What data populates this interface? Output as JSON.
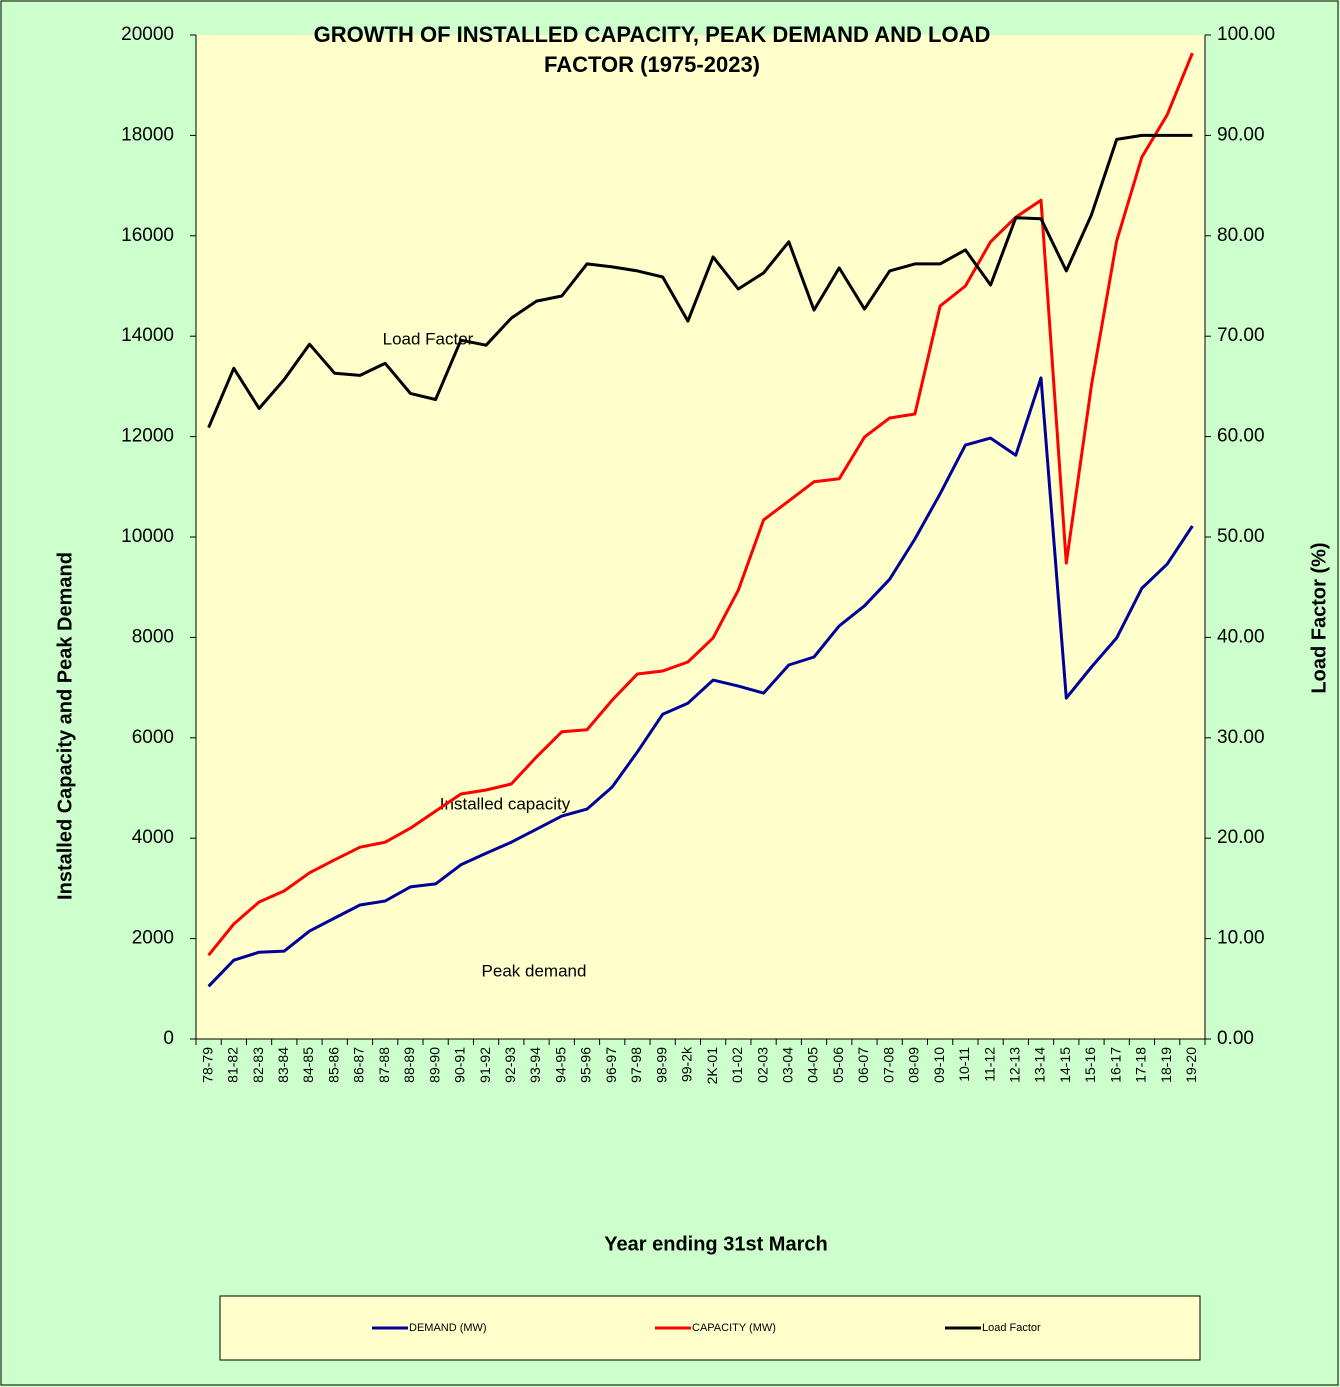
{
  "chart_data": {
    "type": "line",
    "title": "GROWTH OF INSTALLED CAPACITY, PEAK DEMAND AND LOAD FACTOR (1975-2023)",
    "x_label": "Year ending 31st March",
    "y_label": "Installed Capacity and Peak Demand",
    "y2_label": "Load Factor (%)",
    "annotations": [
      "Load Factor",
      "Installed capacity",
      "Peak demand"
    ],
    "categories": [
      "78-79",
      "81-82",
      "82-83",
      "83-84",
      "84-85",
      "85-86",
      "86-87",
      "87-88",
      "88-89",
      "89-90",
      "90-91",
      "91-92",
      "92-93",
      "93-94",
      "94-95",
      "95-96",
      "96-97",
      "97-98",
      "98-99",
      "99-2k",
      "2K-01",
      "01-02",
      "02-03",
      "03-04",
      "04-05",
      "05-06",
      "06-07",
      "07-08",
      "08-09",
      "09-10",
      "10-11",
      "11-12",
      "12-13",
      "13-14",
      "14-15",
      "15-16",
      "16-17",
      "17-18",
      "18-19",
      "19-20"
    ],
    "series": [
      {
        "name": "DEMAND (MW)",
        "color": "#000099",
        "values": [
          1050,
          1570,
          1730,
          1750,
          2150,
          2410,
          2670,
          2750,
          3030,
          3090,
          3470,
          3700,
          3920,
          4180,
          4440,
          4580,
          5020,
          5720,
          6470,
          6690,
          7150,
          7030,
          6890,
          7450,
          7610,
          8230,
          8630,
          9160,
          9960,
          10860,
          11830,
          11970,
          11630,
          13170,
          6790,
          7410,
          7990,
          8980,
          9460,
          10220
        ]
      },
      {
        "name": "CAPACITY (MW)",
        "color": "#ff0000",
        "values": [
          1670,
          2290,
          2730,
          2950,
          3310,
          3570,
          3820,
          3920,
          4200,
          4540,
          4880,
          4960,
          5080,
          5620,
          6120,
          6160,
          6750,
          7270,
          7330,
          7510,
          7990,
          8940,
          10340,
          10720,
          11100,
          11160,
          11990,
          12370,
          12450,
          14600,
          15000,
          15880,
          16370,
          16710,
          9480,
          13030,
          15900,
          17570,
          18410,
          19640
        ]
      },
      {
        "name": "Load Factor",
        "color": "#000000",
        "axis": "y2",
        "values": [
          60.9,
          66.8,
          62.8,
          65.7,
          69.2,
          66.3,
          66.1,
          67.3,
          64.3,
          63.7,
          69.6,
          69.1,
          71.8,
          73.5,
          74.0,
          77.2,
          76.9,
          76.5,
          75.9,
          71.5,
          77.9,
          74.7,
          76.3,
          79.4,
          72.6,
          76.8,
          72.7,
          76.5,
          77.2,
          77.2,
          78.6,
          75.1,
          81.8,
          81.7,
          76.5,
          82.1,
          89.6,
          90.0,
          90.0,
          90.0
        ]
      }
    ],
    "ylim": [
      0,
      20000
    ],
    "yticks": [
      0,
      2000,
      4000,
      6000,
      8000,
      10000,
      12000,
      14000,
      16000,
      18000,
      20000
    ],
    "y2lim": [
      0,
      100
    ],
    "y2ticks": [
      {
        "value": 0,
        "label": "0.00"
      },
      {
        "value": 10,
        "label": "10.00"
      },
      {
        "value": 20,
        "label": "20.00"
      },
      {
        "value": 30,
        "label": "30.00"
      },
      {
        "value": 40,
        "label": "40.00"
      },
      {
        "value": 50,
        "label": "50.00"
      },
      {
        "value": 60,
        "label": "60.00"
      },
      {
        "value": 70,
        "label": "70.00"
      },
      {
        "value": 80,
        "label": "80.00"
      },
      {
        "value": 90,
        "label": "90.00"
      },
      {
        "value": 100,
        "label": "100.00"
      }
    ],
    "grid": false,
    "legend": "bottom"
  }
}
